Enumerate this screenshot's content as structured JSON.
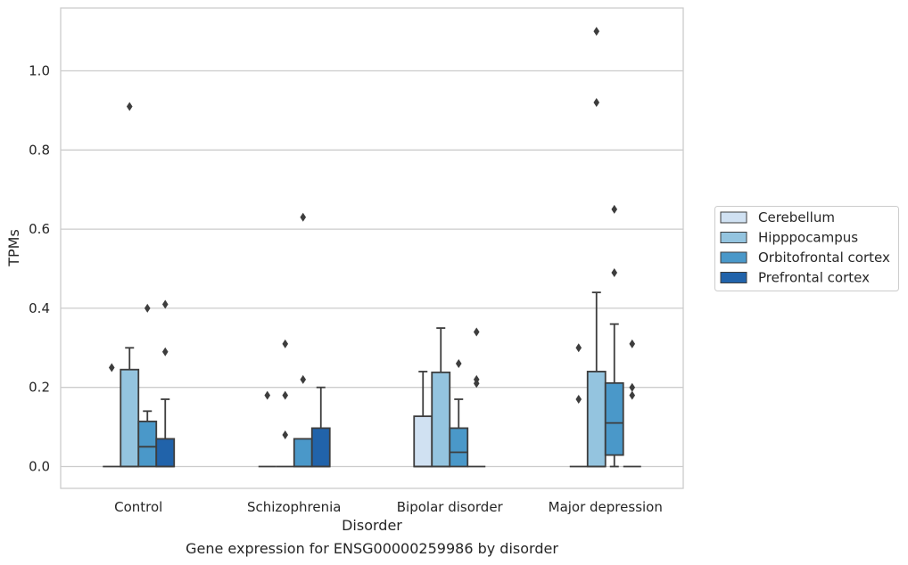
{
  "caption": "Gene expression for ENSG00000259986 by disorder",
  "chart_data": {
    "type": "box",
    "xlabel": "Disorder",
    "ylabel": "TPMs",
    "ylim": [
      -0.055,
      1.16
    ],
    "yticks": [
      0.0,
      0.2,
      0.4,
      0.6,
      0.8,
      1.0
    ],
    "ytick_labels": [
      "0.0",
      "0.2",
      "0.4",
      "0.6",
      "0.8",
      "1.0"
    ],
    "grid": "horizontal",
    "legend_position": "right",
    "categories": [
      "Control",
      "Schizophrenia",
      "Bipolar disorder",
      "Major depression"
    ],
    "series": [
      {
        "name": "Cerebellum",
        "color": "#d0e1f2",
        "boxes": [
          {
            "q1": 0,
            "median": 0,
            "q3": 0,
            "whisker_low": 0,
            "whisker_high": 0,
            "outliers": [
              0.25
            ]
          },
          {
            "q1": 0,
            "median": 0,
            "q3": 0,
            "whisker_low": 0,
            "whisker_high": 0,
            "outliers": [
              0.18
            ]
          },
          {
            "q1": 0,
            "median": 0,
            "q3": 0.127,
            "whisker_low": 0,
            "whisker_high": 0.24,
            "outliers": []
          },
          {
            "q1": 0,
            "median": 0,
            "q3": 0,
            "whisker_low": 0,
            "whisker_high": 0,
            "outliers": [
              0.3,
              0.17
            ]
          }
        ]
      },
      {
        "name": "Hipppocampus",
        "color": "#94c4df",
        "boxes": [
          {
            "q1": 0,
            "median": 0,
            "q3": 0.245,
            "whisker_low": 0,
            "whisker_high": 0.3,
            "outliers": [
              0.91
            ]
          },
          {
            "q1": 0,
            "median": 0,
            "q3": 0,
            "whisker_low": 0,
            "whisker_high": 0,
            "outliers": [
              0.31,
              0.18,
              0.08
            ]
          },
          {
            "q1": 0,
            "median": 0,
            "q3": 0.238,
            "whisker_low": 0,
            "whisker_high": 0.35,
            "outliers": []
          },
          {
            "q1": 0,
            "median": 0,
            "q3": 0.24,
            "whisker_low": 0,
            "whisker_high": 0.44,
            "outliers": [
              1.1,
              0.92
            ]
          }
        ]
      },
      {
        "name": "Orbitofrontal cortex",
        "color": "#4a98c9",
        "boxes": [
          {
            "q1": 0,
            "median": 0.05,
            "q3": 0.114,
            "whisker_low": 0,
            "whisker_high": 0.14,
            "outliers": [
              0.4
            ]
          },
          {
            "q1": 0,
            "median": 0,
            "q3": 0.07,
            "whisker_low": 0,
            "whisker_high": 0.07,
            "outliers": [
              0.63,
              0.22
            ]
          },
          {
            "q1": 0,
            "median": 0.036,
            "q3": 0.097,
            "whisker_low": 0,
            "whisker_high": 0.17,
            "outliers": [
              0.26
            ]
          },
          {
            "q1": 0.029,
            "median": 0.11,
            "q3": 0.211,
            "whisker_low": 0,
            "whisker_high": 0.36,
            "outliers": [
              0.65,
              0.49
            ]
          }
        ]
      },
      {
        "name": "Prefrontal cortex",
        "color": "#2163aa",
        "boxes": [
          {
            "q1": 0,
            "median": 0,
            "q3": 0.07,
            "whisker_low": 0,
            "whisker_high": 0.17,
            "outliers": [
              0.41,
              0.29
            ]
          },
          {
            "q1": 0,
            "median": 0,
            "q3": 0.097,
            "whisker_low": 0,
            "whisker_high": 0.2,
            "outliers": []
          },
          {
            "q1": 0,
            "median": 0,
            "q3": 0,
            "whisker_low": 0,
            "whisker_high": 0,
            "outliers": [
              0.34,
              0.22,
              0.21
            ]
          },
          {
            "q1": 0,
            "median": 0,
            "q3": 0,
            "whisker_low": 0,
            "whisker_high": 0,
            "outliers": [
              0.31,
              0.2,
              0.18
            ]
          }
        ]
      }
    ]
  }
}
